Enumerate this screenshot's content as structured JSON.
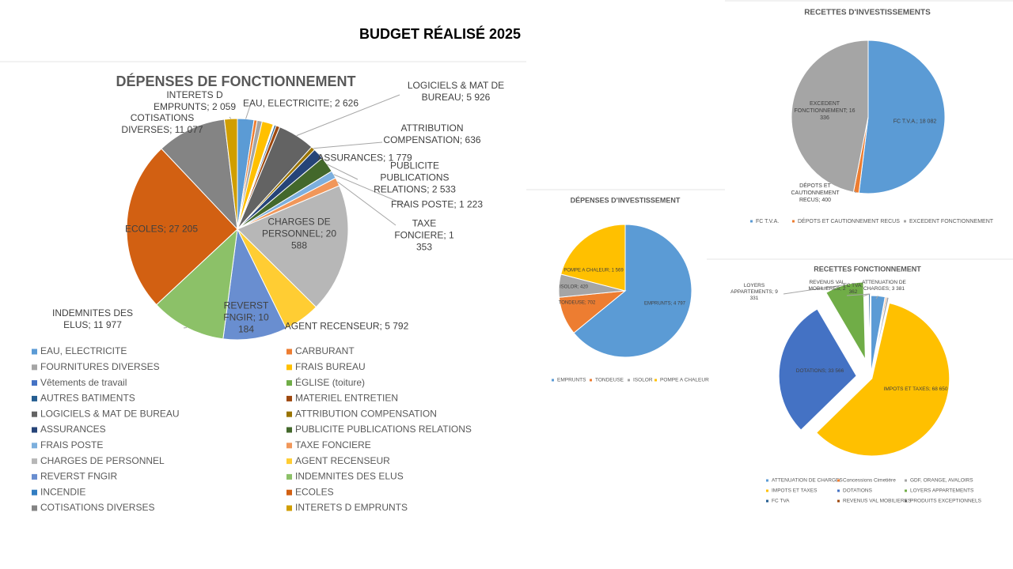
{
  "title": "BUDGET RÉALISÉ 2025",
  "chart_data": [
    {
      "type": "pie",
      "title": "DÉPENSES DE FONCTIONNEMENT",
      "categories": [
        "EAU, ELECTRICITE",
        "CARBURANT",
        "FOURNITURES DIVERSES",
        "FRAIS BUREAU",
        "Vêtements de travail",
        "ÉGLISE (toiture)",
        "AUTRES BATIMENTS",
        "MATERIEL ENTRETIEN",
        "LOGICIELS & MAT DE BUREAU",
        "ATTRIBUTION COMPENSATION",
        "ASSURANCES",
        "PUBLICITE PUBLICATIONS RELATIONS",
        "FRAIS POSTE",
        "TAXE FONCIERE",
        "CHARGES DE PERSONNEL",
        "AGENT RECENSEUR",
        "REVERST FNGIR",
        "INDEMNITES DES ELUS",
        "INCENDIE",
        "ECOLES",
        "COTISATIONS DIVERSES",
        "INTERETS D EMPRUNTS"
      ],
      "values": [
        2626,
        500,
        800,
        1800,
        100,
        100,
        300,
        600,
        5926,
        636,
        1779,
        2533,
        1223,
        1353,
        20588,
        5792,
        10184,
        11977,
        0,
        27205,
        11077,
        2059
      ],
      "value_labels": [
        "EAU, ELECTRICITE; 2 626",
        null,
        null,
        null,
        null,
        null,
        null,
        null,
        "LOGICIELS & MAT DE BUREAU; 5 926",
        "ATTRIBUTION COMPENSATION; 636",
        "ASSURANCES; 1 779",
        "PUBLICITE PUBLICATIONS RELATIONS; 2 533",
        "FRAIS POSTE; 1 223",
        "TAXE FONCIERE; 1 353",
        "CHARGES DE PERSONNEL; 20 588",
        "AGENT RECENSEUR; 5 792",
        "REVERST FNGIR; 10 184",
        "INDEMNITES DES ELUS; 11 977",
        null,
        "ECOLES; 27 205",
        "COTISATIONS DIVERSES; 11 077",
        "INTERETS D EMPRUNTS; 2 059"
      ],
      "colors": [
        "#5b9bd5",
        "#ed7d31",
        "#a5a5a5",
        "#ffc000",
        "#4472c4",
        "#70ad47",
        "#255e91",
        "#9e480e",
        "#636363",
        "#997300",
        "#264478",
        "#43682b",
        "#7cafdd",
        "#f1975a",
        "#b7b7b7",
        "#ffcd33",
        "#698ed0",
        "#8cc168",
        "#327dc2",
        "#d26012",
        "#848484",
        "#d09e00"
      ]
    },
    {
      "type": "pie",
      "title": "RECETTES D'INVESTISSEMENTS",
      "categories": [
        "FC T.V.A.",
        "DÉPOTS ET CAUTIONNEMENT RECUS",
        "EXCEDENT FONCTIONNEMENT"
      ],
      "values": [
        18082,
        400,
        16336
      ],
      "value_labels": [
        "FC T.V.A.; 18 082",
        "DÉPOTS ET CAUTIONNEMENT RECUS; 400",
        "EXCEDENT FONCTIONNEMENT; 16 336"
      ],
      "colors": [
        "#5b9bd5",
        "#ed7d31",
        "#a5a5a5"
      ]
    },
    {
      "type": "pie",
      "title": "DÉPENSES D'INVESTISSEMENT",
      "categories": [
        "EMPRUNTS",
        "TONDEUSE",
        "ISOLOR",
        "POMPE A CHALEUR"
      ],
      "values": [
        4797,
        702,
        420,
        1569
      ],
      "value_labels": [
        "EMPRUNTS; 4 797",
        "TONDEUSE; 702",
        "ISOLOR; 420",
        "POMPE A CHALEUR; 1 569"
      ],
      "colors": [
        "#5b9bd5",
        "#ed7d31",
        "#a5a5a5",
        "#ffc000"
      ]
    },
    {
      "type": "pie",
      "title": "RECETTES FONCTIONNEMENT",
      "categories": [
        "ATTENUATION DE CHARGES",
        "Concessions Cimetière",
        "GDF, ORANGE, AVALOIRS",
        "IMPOTS ET TAXES",
        "DOTATIONS",
        "LOYERS APPARTEMENTS",
        "FC TVA",
        "REVENUS VAL MOBILIERES",
        "PRODUITS EXCEPTIONNELS"
      ],
      "values": [
        3381,
        300,
        500,
        68650,
        33566,
        9331,
        362,
        2,
        100
      ],
      "value_labels": [
        "ATTENUATION DE CHARGES; 3 381",
        null,
        null,
        "IMPOTS ET TAXES; 68 650",
        "DOTATIONS; 33 566",
        "LOYERS APPARTEMENTS; 9 331",
        "FC TVA; 362",
        "REVENUS VAL MOBILIERES; 2",
        null
      ],
      "colors": [
        "#5b9bd5",
        "#ed7d31",
        "#a5a5a5",
        "#ffc000",
        "#4472c4",
        "#70ad47",
        "#255e91",
        "#9e480e",
        "#636363"
      ]
    }
  ]
}
